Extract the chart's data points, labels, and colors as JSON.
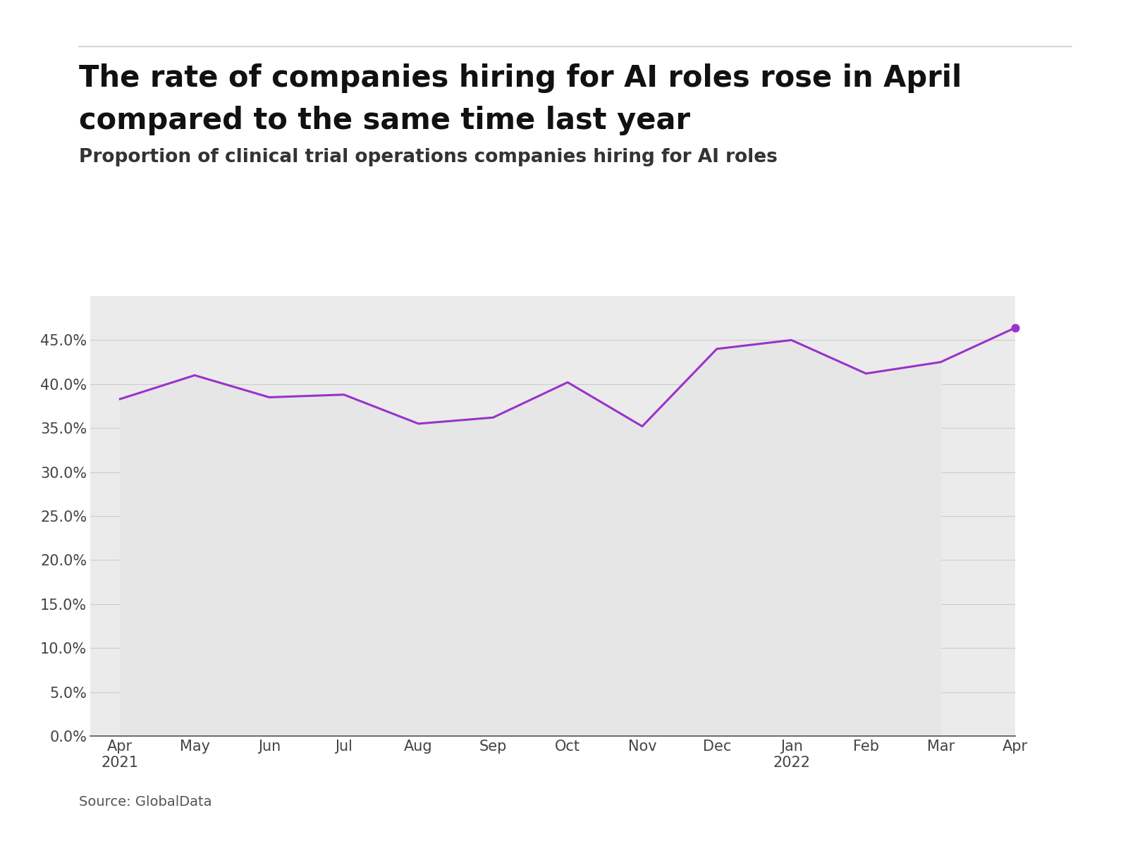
{
  "title_line1": "The rate of companies hiring for AI roles rose in April",
  "title_line2": "compared to the same time last year",
  "subtitle": "Proportion of clinical trial operations companies hiring for AI roles",
  "source": "Source: GlobalData",
  "x_labels": [
    "Apr\n2021",
    "May",
    "Jun",
    "Jul",
    "Aug",
    "Sep",
    "Oct",
    "Nov",
    "Dec",
    "Jan\n2022",
    "Feb",
    "Mar",
    "Apr"
  ],
  "values": [
    38.3,
    41.0,
    38.5,
    38.8,
    35.5,
    36.2,
    40.2,
    35.2,
    44.0,
    45.0,
    41.2,
    42.5,
    46.4
  ],
  "line_color": "#9933cc",
  "fill_color": "#e6e6e6",
  "bg_color": "#ebebeb",
  "ylim": [
    0,
    50
  ],
  "yticks": [
    0,
    5,
    10,
    15,
    20,
    25,
    30,
    35,
    40,
    45
  ],
  "title_fontsize": 30,
  "subtitle_fontsize": 19,
  "axis_fontsize": 15,
  "source_fontsize": 14,
  "top_line_color": "#cccccc"
}
